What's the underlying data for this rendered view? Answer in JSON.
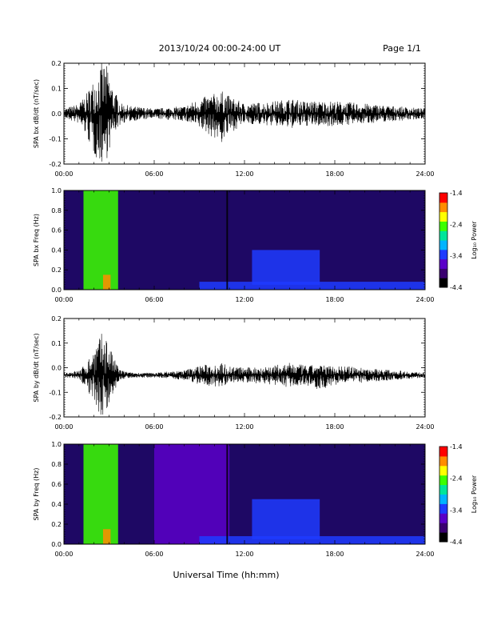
{
  "header": {
    "title": "2013/10/24  00:00-24:00 UT",
    "page": "Page 1/1"
  },
  "footer": {
    "xlabel": "Universal Time (hh:mm)"
  },
  "x_ticks": [
    "00:00",
    "06:00",
    "12:00",
    "18:00",
    "24:00"
  ],
  "colorbar_ticks": [
    "-1.4",
    "-2.4",
    "-3.4",
    "-4.4"
  ],
  "colorbar_label": "Log₁₀ Power",
  "colors": {
    "trace": "#000000",
    "spectrogram_background": "#1e0864",
    "colormap": [
      "#000000",
      "#3a0070",
      "#5a00c8",
      "#1f3bff",
      "#00b4ff",
      "#00e59a",
      "#3cff00",
      "#ffff00",
      "#ff8c00",
      "#ff0000"
    ]
  },
  "chart_data": [
    {
      "type": "line",
      "ylabel": "SPA bx dB/dt (nT/sec)",
      "x_range_hours": [
        0,
        24
      ],
      "ylim": [
        -0.2,
        0.2
      ],
      "yticks": [
        "0.2",
        "0.1",
        "0.0",
        "-0.1",
        "-0.2"
      ],
      "x_hours": [
        0,
        1,
        1.5,
        2,
        2.5,
        2.8,
        3.0,
        3.3,
        3.8,
        4.5,
        6,
        8,
        9,
        10.5,
        11,
        12,
        14,
        15,
        16,
        17,
        18,
        20,
        22,
        24
      ],
      "envelope_max": [
        0.02,
        0.04,
        0.08,
        0.14,
        0.2,
        0.2,
        0.16,
        0.1,
        0.04,
        0.03,
        0.02,
        0.03,
        0.06,
        0.09,
        0.07,
        0.04,
        0.05,
        0.06,
        0.05,
        0.05,
        0.05,
        0.04,
        0.03,
        0.02
      ],
      "envelope_min": [
        -0.02,
        -0.04,
        -0.09,
        -0.17,
        -0.2,
        -0.19,
        -0.15,
        -0.08,
        -0.04,
        -0.03,
        -0.02,
        -0.03,
        -0.06,
        -0.12,
        -0.08,
        -0.04,
        -0.05,
        -0.06,
        -0.05,
        -0.05,
        -0.05,
        -0.04,
        -0.03,
        -0.02
      ]
    },
    {
      "type": "heatmap",
      "ylabel": "SPA bx Freq (Hz)",
      "x_range_hours": [
        0,
        24
      ],
      "ylim": [
        0.0,
        1.0
      ],
      "yticks": [
        "1.0",
        "0.8",
        "0.6",
        "0.4",
        "0.2",
        "0.0"
      ],
      "color_range_log10_power": [
        -4.4,
        -1.4
      ],
      "features": [
        {
          "x_hours": [
            1.3,
            3.6
          ],
          "freq_hz": [
            0.0,
            1.0
          ],
          "level": -2.4
        },
        {
          "x_hours": [
            2.6,
            3.1
          ],
          "freq_hz": [
            0.0,
            0.15
          ],
          "level": -1.6
        },
        {
          "x_hours": [
            9.0,
            24.0
          ],
          "freq_hz": [
            0.0,
            0.08
          ],
          "level": -3.3
        },
        {
          "x_hours": [
            12.5,
            17.0
          ],
          "freq_hz": [
            0.05,
            0.4
          ],
          "level": -3.5
        },
        {
          "x_hours": [
            10.8,
            10.9
          ],
          "freq_hz": [
            0.0,
            1.0
          ],
          "level": -4.4
        }
      ]
    },
    {
      "type": "line",
      "ylabel": "SPA by dB/dt (nT/sec)",
      "x_range_hours": [
        0,
        24
      ],
      "ylim": [
        -0.2,
        0.2
      ],
      "yticks": [
        "0.2",
        "0.1",
        "0.0",
        "-0.1",
        "-0.2"
      ],
      "x_hours": [
        0,
        1,
        1.5,
        2,
        2.5,
        2.8,
        3.0,
        3.3,
        3.8,
        4.5,
        6,
        8,
        9,
        10.5,
        11,
        12,
        14,
        15,
        16,
        17,
        18,
        20,
        22,
        24
      ],
      "baseline": -0.03,
      "envelope_max": [
        -0.02,
        -0.01,
        0.02,
        0.08,
        0.14,
        0.14,
        0.1,
        0.04,
        -0.01,
        -0.02,
        -0.02,
        -0.01,
        0.01,
        0.02,
        0.01,
        0.0,
        0.01,
        0.02,
        0.01,
        0.01,
        0.01,
        0.0,
        -0.01,
        -0.02
      ],
      "envelope_min": [
        -0.04,
        -0.05,
        -0.08,
        -0.15,
        -0.2,
        -0.2,
        -0.17,
        -0.1,
        -0.05,
        -0.04,
        -0.04,
        -0.05,
        -0.07,
        -0.08,
        -0.06,
        -0.06,
        -0.07,
        -0.08,
        -0.07,
        -0.09,
        -0.07,
        -0.06,
        -0.05,
        -0.04
      ]
    },
    {
      "type": "heatmap",
      "ylabel": "SPA by Freq (Hz)",
      "x_range_hours": [
        0,
        24
      ],
      "ylim": [
        0.0,
        1.0
      ],
      "yticks": [
        "1.0",
        "0.8",
        "0.6",
        "0.4",
        "0.2",
        "0.0"
      ],
      "color_range_log10_power": [
        -4.4,
        -1.4
      ],
      "features": [
        {
          "x_hours": [
            1.3,
            3.6
          ],
          "freq_hz": [
            0.0,
            1.0
          ],
          "level": -2.4
        },
        {
          "x_hours": [
            2.6,
            3.1
          ],
          "freq_hz": [
            0.0,
            0.15
          ],
          "level": -1.6
        },
        {
          "x_hours": [
            6.0,
            11.0
          ],
          "freq_hz": [
            0.0,
            1.0
          ],
          "level": -3.9
        },
        {
          "x_hours": [
            9.0,
            24.0
          ],
          "freq_hz": [
            0.0,
            0.08
          ],
          "level": -3.3
        },
        {
          "x_hours": [
            12.5,
            17.0
          ],
          "freq_hz": [
            0.05,
            0.45
          ],
          "level": -3.4
        },
        {
          "x_hours": [
            10.8,
            10.9
          ],
          "freq_hz": [
            0.0,
            1.0
          ],
          "level": -4.4
        }
      ]
    }
  ]
}
